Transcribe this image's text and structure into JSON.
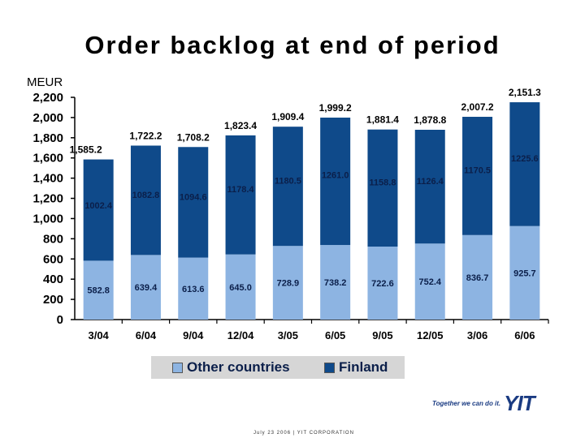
{
  "title": "Order backlog at end of period",
  "ylabel": "MEUR",
  "colors": {
    "other": "#8db4e2",
    "finland": "#0f4a8a"
  },
  "legend": {
    "other": "Other countries",
    "finland": "Finland"
  },
  "logo": {
    "slogan": "Together we can do it.",
    "mark": "YIT"
  },
  "footer": "July 23 2006  |  YIT CORPORATION",
  "chart_data": {
    "type": "bar",
    "stacked": true,
    "categories": [
      "3/04",
      "6/04",
      "9/04",
      "12/04",
      "3/05",
      "6/05",
      "9/05",
      "12/05",
      "3/06",
      "6/06"
    ],
    "series": [
      {
        "name": "Other countries",
        "values": [
          582.8,
          639.4,
          613.6,
          645.0,
          728.9,
          738.2,
          722.6,
          752.4,
          836.7,
          925.7
        ],
        "labels": [
          "582.8",
          "639.4",
          "613.6",
          "645.0",
          "728.9",
          "738.2",
          "722.6",
          "752.4",
          "836.7",
          "925.7"
        ]
      },
      {
        "name": "Finland",
        "values": [
          1002.4,
          1082.8,
          1094.6,
          1178.4,
          1180.5,
          1261.0,
          1158.8,
          1126.4,
          1170.5,
          1225.6
        ],
        "labels": [
          "1002.4",
          "1082.8",
          "1094.6",
          "1178.4",
          "1180.5",
          "1261.0",
          "1158.8",
          "1126.4",
          "1170.5",
          "1225.6"
        ]
      }
    ],
    "totals": [
      1585.2,
      1722.2,
      1708.2,
      1823.4,
      1909.4,
      1999.2,
      1881.4,
      1878.8,
      2007.2,
      2151.3
    ],
    "total_labels": [
      "1,585.2",
      "1,722.2",
      "1,708.2",
      "1,823.4",
      "1,909.4",
      "1,999.2",
      "1,881.4",
      "1,878.8",
      "2,007.2",
      "2,151.3"
    ],
    "ylim": [
      0,
      2200
    ],
    "yticks": [
      0,
      200,
      400,
      600,
      800,
      1000,
      1200,
      1400,
      1600,
      1800,
      2000,
      2200
    ],
    "ytick_labels": [
      "0",
      "200",
      "400",
      "600",
      "800",
      "1,000",
      "1,200",
      "1,400",
      "1,600",
      "1,800",
      "2,000",
      "2,200"
    ],
    "grid": false,
    "legend_position": "bottom"
  }
}
